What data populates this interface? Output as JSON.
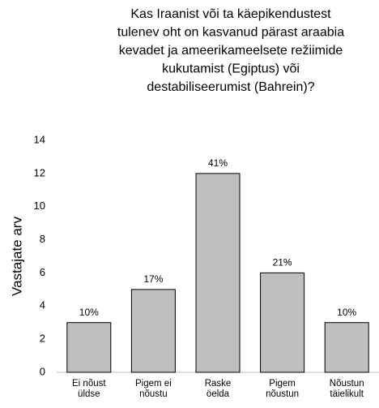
{
  "chart_data": {
    "type": "bar",
    "title": [
      "Kas Iraanist või ta käepikendustest",
      "tulenev oht on kasvanud pärast araabia",
      "kevadet ja ameerikameelsete režiimide",
      "kukutamist (Egiptus) või",
      "destabiliseerumist (Bahrein)?"
    ],
    "y_label": "Vastajate arv",
    "categories": [
      [
        "Ei nõust",
        "üldse"
      ],
      [
        "Pigem ei",
        "nõustu"
      ],
      [
        "Raske",
        "öelda"
      ],
      [
        "Pigem",
        "nõustun"
      ],
      [
        "Nõustun",
        "täielikult"
      ]
    ],
    "values": [
      3,
      5,
      12,
      6,
      3
    ],
    "annotations": [
      "10%",
      "17%",
      "41%",
      "21%",
      "10%"
    ],
    "color": "#bfbfbf",
    "ylim": [
      0,
      14
    ],
    "yticks": [
      0,
      2,
      4,
      6,
      8,
      10,
      12,
      14
    ],
    "grid": false
  }
}
